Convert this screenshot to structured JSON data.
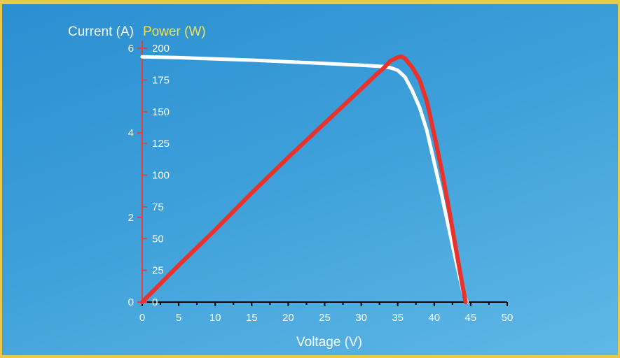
{
  "chart_data": {
    "type": "line",
    "xlabel": "Voltage (V)",
    "ylabel_left": "Current (A)",
    "ylabel_right": "Power (W)",
    "x_ticks": [
      "0",
      "5",
      "10",
      "15",
      "20",
      "25",
      "30",
      "35",
      "40",
      "45",
      "50"
    ],
    "y_left_ticks": [
      "0",
      "2",
      "4",
      "6"
    ],
    "y_right_ticks": [
      "0",
      "25",
      "50",
      "75",
      "100",
      "125",
      "150",
      "175",
      "200"
    ],
    "xlim": [
      0,
      50
    ],
    "ylim_left": [
      0,
      6.15
    ],
    "ylim_right": [
      0,
      205
    ],
    "series": [
      {
        "name": "Current (A)",
        "axis": "left",
        "color": "#ffffff",
        "x": [
          0,
          5,
          10,
          15,
          20,
          25,
          30,
          32,
          33,
          34,
          35,
          36,
          37,
          38,
          39,
          40,
          41,
          42,
          43,
          44,
          44.5
        ],
        "values": [
          5.8,
          5.78,
          5.75,
          5.72,
          5.68,
          5.64,
          5.6,
          5.58,
          5.57,
          5.54,
          5.48,
          5.32,
          5.0,
          4.6,
          4.05,
          3.3,
          2.55,
          1.75,
          0.95,
          0.2,
          0
        ]
      },
      {
        "name": "Power (W)",
        "axis": "right",
        "color": "#e8322a",
        "x": [
          0,
          5,
          10,
          15,
          20,
          25,
          30,
          32,
          33,
          34,
          35,
          35.5,
          36,
          37,
          38,
          39,
          40,
          41,
          42,
          43,
          44,
          44.3
        ],
        "values": [
          0,
          29,
          57,
          86,
          114,
          141,
          168,
          179,
          184,
          190,
          193,
          193.5,
          192,
          185,
          175,
          158,
          132,
          105,
          74,
          41,
          9,
          0
        ]
      }
    ]
  }
}
